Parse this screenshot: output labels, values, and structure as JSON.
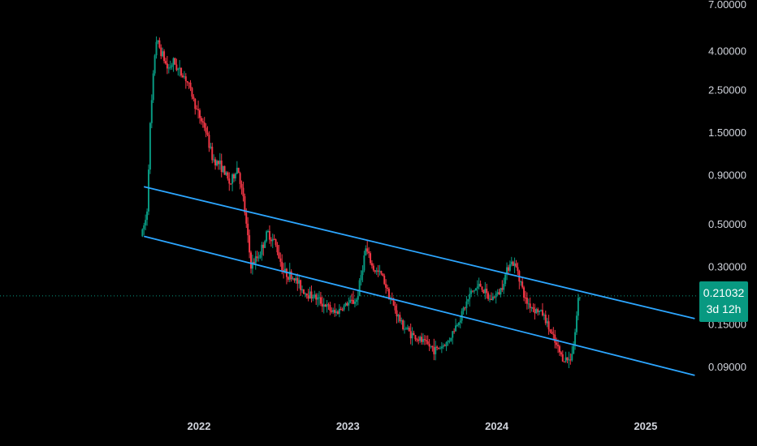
{
  "chart_data": {
    "type": "candlestick",
    "y_scale": "log",
    "y_ticks": [
      "7.00000",
      "4.00000",
      "2.50000",
      "1.50000",
      "0.90000",
      "0.50000",
      "0.30000",
      "0.15000",
      "0.09000"
    ],
    "y_tick_values": [
      7.0,
      4.0,
      2.5,
      1.5,
      0.9,
      0.5,
      0.3,
      0.15,
      0.09
    ],
    "x_ticks": [
      "2022",
      "2023",
      "2024",
      "2025"
    ],
    "x_tick_values": [
      2022.0,
      2023.0,
      2024.0,
      2025.0
    ],
    "last_price": "0.21032",
    "countdown": "3d 12h",
    "grid": false,
    "colors": {
      "background": "#000000",
      "up": "#089981",
      "down": "#f23645",
      "channel": "#2ca6ff",
      "axis_text": "#d1d4dc",
      "price_line": "#089981"
    },
    "channel_lines": [
      {
        "start": [
          2021.63,
          0.78
        ],
        "end": [
          2025.33,
          0.16
        ]
      },
      {
        "start": [
          2021.63,
          0.43
        ],
        "end": [
          2025.33,
          0.081
        ]
      }
    ],
    "price_path": [
      [
        2021.62,
        0.43
      ],
      [
        2021.66,
        0.55
      ],
      [
        2021.68,
        1.5
      ],
      [
        2021.72,
        4.6
      ],
      [
        2021.76,
        3.9
      ],
      [
        2021.8,
        3.2
      ],
      [
        2021.84,
        3.5
      ],
      [
        2021.88,
        3.1
      ],
      [
        2021.92,
        2.9
      ],
      [
        2021.96,
        2.4
      ],
      [
        2022.0,
        1.9
      ],
      [
        2022.05,
        1.6
      ],
      [
        2022.1,
        1.1
      ],
      [
        2022.16,
        1.0
      ],
      [
        2022.22,
        0.8
      ],
      [
        2022.27,
        1.0
      ],
      [
        2022.31,
        0.65
      ],
      [
        2022.36,
        0.3
      ],
      [
        2022.42,
        0.35
      ],
      [
        2022.47,
        0.45
      ],
      [
        2022.52,
        0.4
      ],
      [
        2022.58,
        0.28
      ],
      [
        2022.65,
        0.26
      ],
      [
        2022.72,
        0.22
      ],
      [
        2022.78,
        0.21
      ],
      [
        2022.85,
        0.19
      ],
      [
        2022.92,
        0.17
      ],
      [
        2023.0,
        0.19
      ],
      [
        2023.07,
        0.2
      ],
      [
        2023.13,
        0.37
      ],
      [
        2023.18,
        0.29
      ],
      [
        2023.24,
        0.27
      ],
      [
        2023.3,
        0.2
      ],
      [
        2023.37,
        0.15
      ],
      [
        2023.45,
        0.13
      ],
      [
        2023.52,
        0.12
      ],
      [
        2023.6,
        0.11
      ],
      [
        2023.68,
        0.12
      ],
      [
        2023.76,
        0.16
      ],
      [
        2023.84,
        0.22
      ],
      [
        2023.9,
        0.24
      ],
      [
        2023.96,
        0.2
      ],
      [
        2024.03,
        0.22
      ],
      [
        2024.1,
        0.32
      ],
      [
        2024.15,
        0.29
      ],
      [
        2024.2,
        0.2
      ],
      [
        2024.26,
        0.18
      ],
      [
        2024.32,
        0.17
      ],
      [
        2024.4,
        0.12
      ],
      [
        2024.45,
        0.1
      ],
      [
        2024.5,
        0.097
      ],
      [
        2024.53,
        0.12
      ],
      [
        2024.56,
        0.21
      ]
    ]
  }
}
